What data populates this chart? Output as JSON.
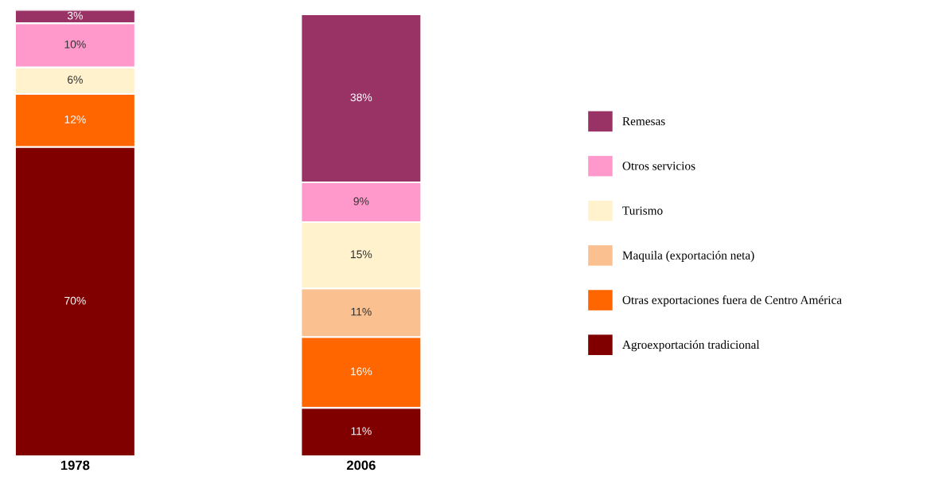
{
  "chart_data": {
    "type": "bar",
    "stacked": true,
    "categories": [
      "1978",
      "2006"
    ],
    "legend": "right",
    "tick_labels": "x",
    "grid": false,
    "series": [
      {
        "name": "Agroexportación tradicional",
        "color": "#800000",
        "values": [
          70,
          11
        ],
        "value_labels": [
          "70%",
          "11%"
        ]
      },
      {
        "name": "Otras exportaciones fuera de Centro América",
        "color": "#ff6600",
        "values": [
          12,
          16
        ],
        "value_labels": [
          "12%",
          "16%"
        ]
      },
      {
        "name": "Maquila (exportación neta)",
        "color": "#fac090",
        "values": [
          null,
          11
        ],
        "value_labels": [
          null,
          "11%"
        ]
      },
      {
        "name": "Turismo",
        "color": "#fff2cc",
        "values": [
          6,
          15
        ],
        "value_labels": [
          "6%",
          "15%"
        ]
      },
      {
        "name": "Otros servicios",
        "color": "#ff99cc",
        "values": [
          10,
          9
        ],
        "value_labels": [
          "10%",
          "9%"
        ]
      },
      {
        "name": "Remesas",
        "color": "#993366",
        "values": [
          3,
          38
        ],
        "value_labels": [
          "3%",
          "38%"
        ]
      }
    ]
  }
}
